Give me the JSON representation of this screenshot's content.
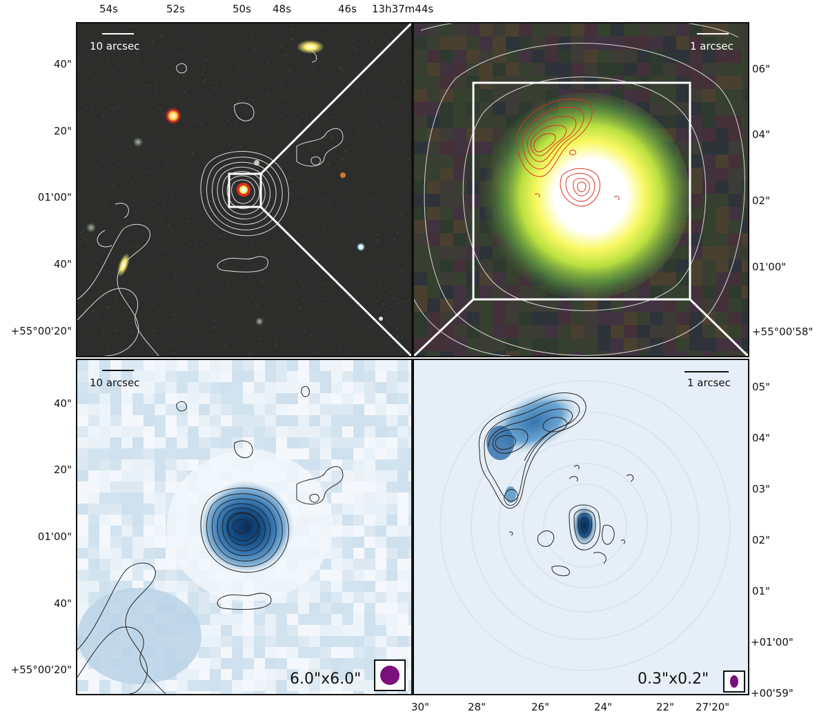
{
  "top_axis_ticks": [
    "54s",
    "52s",
    "50s",
    "48s",
    "46s",
    "13h37m44s"
  ],
  "left_ticks_top": [
    "40\"",
    "20\"",
    "01'00\"",
    "40\"",
    "+55°00'20\""
  ],
  "left_ticks_bottom": [
    "40\"",
    "20\"",
    "01'00\"",
    "40\"",
    "+55°00'20\""
  ],
  "right_ticks_top": [
    "06\"",
    "04\"",
    "02\"",
    "01'00\"",
    "+55°00'58\""
  ],
  "right_ticks_bottom": [
    "05\"",
    "04\"",
    "03\"",
    "02\"",
    "01\"",
    "+01'00\"",
    "+00'59\""
  ],
  "bottom_axis_ticks": [
    "30\"",
    "28\"",
    "26\"",
    "24\"",
    "22\"",
    "27'20\""
  ],
  "panels": {
    "top_left": {
      "scale_label": "10 arcsec"
    },
    "top_right": {
      "scale_label": "1 arcsec"
    },
    "bottom_left": {
      "scale_label": "10 arcsec",
      "beam_label": "6.0\"x6.0\""
    },
    "bottom_right": {
      "scale_label": "1 arcsec",
      "beam_label": "0.3\"x0.2\""
    }
  },
  "colors": {
    "beam": "#7b0f7e",
    "radio_contour_optical": "#e0e0e0",
    "vlbi_contour": "#e03020",
    "map_blue": "#1f5f99"
  }
}
